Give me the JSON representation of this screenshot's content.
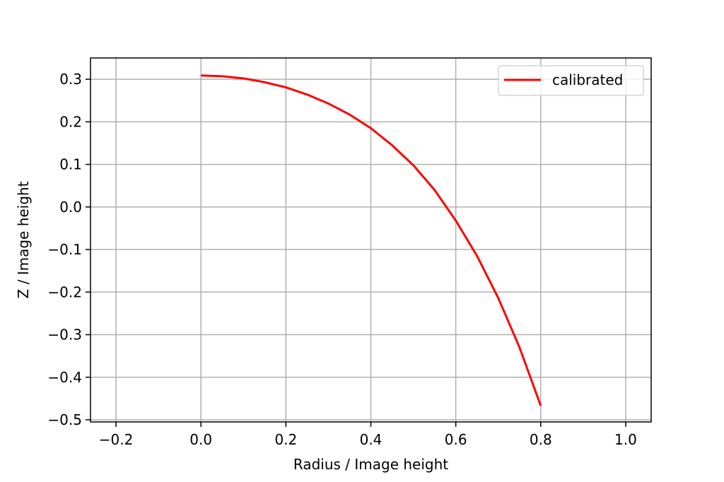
{
  "chart_data": {
    "type": "line",
    "title": "",
    "xlabel": "Radius / Image height",
    "ylabel": "Z / Image height",
    "xlim": [
      -0.26,
      1.06
    ],
    "ylim": [
      -0.505,
      0.35
    ],
    "xticks": [
      -0.2,
      0.0,
      0.2,
      0.4,
      0.6,
      0.8,
      1.0
    ],
    "xtick_labels": [
      "−0.2",
      "0.0",
      "0.2",
      "0.4",
      "0.6",
      "0.8",
      "1.0"
    ],
    "yticks": [
      0.3,
      0.2,
      0.1,
      0.0,
      -0.1,
      -0.2,
      -0.3,
      -0.4,
      -0.5
    ],
    "ytick_labels": [
      "0.3",
      "0.2",
      "0.1",
      "0.0",
      "−0.1",
      "−0.2",
      "−0.3",
      "−0.4",
      "−0.5"
    ],
    "grid": true,
    "legend_position": "top-right",
    "series": [
      {
        "name": "calibrated",
        "color": "#ff0000",
        "x": [
          0.0,
          0.05,
          0.1,
          0.15,
          0.2,
          0.25,
          0.3,
          0.35,
          0.4,
          0.45,
          0.5,
          0.55,
          0.6,
          0.65,
          0.7,
          0.75,
          0.8
        ],
        "y": [
          0.309,
          0.307,
          0.302,
          0.293,
          0.281,
          0.264,
          0.243,
          0.217,
          0.185,
          0.145,
          0.098,
          0.04,
          -0.032,
          -0.115,
          -0.214,
          -0.33,
          -0.467
        ]
      }
    ]
  }
}
